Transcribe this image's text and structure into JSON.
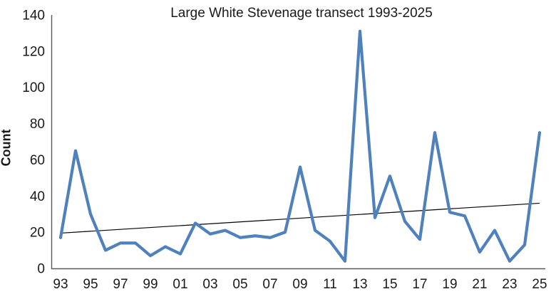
{
  "chart_data": {
    "type": "line",
    "title": "Large White Stevenage transect 1993-2025",
    "xlabel": "",
    "ylabel": "Count",
    "ylim": [
      0,
      140
    ],
    "ytick_labels": [
      "0",
      "20",
      "40",
      "60",
      "80",
      "100",
      "120",
      "140"
    ],
    "ytick_values": [
      0,
      20,
      40,
      60,
      80,
      100,
      120,
      140
    ],
    "xtick_labels": [
      "93",
      "95",
      "97",
      "99",
      "01",
      "03",
      "05",
      "07",
      "09",
      "11",
      "13",
      "15",
      "17",
      "19",
      "21",
      "23",
      "25"
    ],
    "years": [
      1993,
      1994,
      1995,
      1996,
      1997,
      1998,
      1999,
      2000,
      2001,
      2002,
      2003,
      2004,
      2005,
      2006,
      2007,
      2008,
      2009,
      2010,
      2011,
      2012,
      2013,
      2014,
      2015,
      2016,
      2017,
      2018,
      2019,
      2020,
      2021,
      2022,
      2023,
      2024,
      2025
    ],
    "series": [
      {
        "name": "Count",
        "color": "#4F81BD",
        "values": [
          17,
          65,
          30,
          10,
          14,
          14,
          7,
          12,
          8,
          25,
          19,
          21,
          17,
          18,
          17,
          20,
          56,
          21,
          15,
          4,
          131,
          28,
          51,
          26,
          16,
          75,
          31,
          29,
          9,
          21,
          4,
          13,
          75
        ]
      }
    ],
    "trendline": {
      "type": "linear",
      "color": "#000000",
      "start_value": 19.5,
      "end_value": 36
    },
    "grid": false,
    "legend_position": "none",
    "axis_color": "#595959"
  }
}
